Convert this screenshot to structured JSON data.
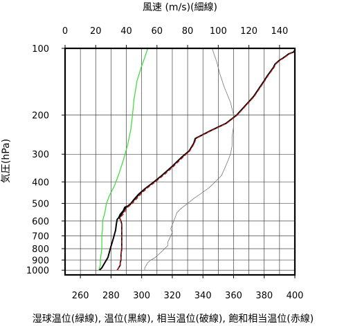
{
  "chart_data": {
    "type": "line",
    "y_scale": "log",
    "y_reversed": true,
    "grid": true,
    "top_axis": {
      "label": "風速 (m/s)(細線)",
      "range": [
        0,
        150
      ],
      "ticks": [
        "0",
        "20",
        "40",
        "60",
        "80",
        "100",
        "120",
        "140"
      ],
      "tick_values": [
        0,
        20,
        40,
        60,
        80,
        100,
        120,
        140
      ]
    },
    "bottom_axis": {
      "label": "湿球温位(緑線), 温位(黒線), 相当温位(破線), 飽和相当温位(赤線)",
      "range": [
        250,
        400
      ],
      "ticks": [
        "260",
        "280",
        "300",
        "320",
        "340",
        "360",
        "380",
        "400"
      ],
      "tick_values": [
        260,
        280,
        300,
        320,
        340,
        360,
        380,
        400
      ]
    },
    "left_axis": {
      "label": "気圧(hPa)",
      "range": [
        100,
        1050
      ],
      "ticks": [
        "100",
        "200",
        "300",
        "400",
        "500",
        "600",
        "700",
        "800",
        "900",
        "1000"
      ],
      "tick_values": [
        100,
        200,
        300,
        400,
        500,
        600,
        700,
        800,
        900,
        1000
      ]
    },
    "colors": {
      "wet_bulb": "#33dd33",
      "theta": "#000000",
      "theta_e": "#111111",
      "theta_es": "#dd1111",
      "wind": "#777777",
      "grid": "#222222"
    },
    "series": [
      {
        "key": "wind",
        "axis": "top",
        "points": [
          [
            52,
            1000
          ],
          [
            52,
            975
          ],
          [
            53,
            950
          ],
          [
            54,
            925
          ],
          [
            56,
            900
          ],
          [
            59,
            875
          ],
          [
            61,
            850
          ],
          [
            63,
            825
          ],
          [
            65,
            800
          ],
          [
            67,
            775
          ],
          [
            67,
            750
          ],
          [
            68,
            725
          ],
          [
            69,
            700
          ],
          [
            70,
            675
          ],
          [
            69,
            650
          ],
          [
            70,
            625
          ],
          [
            71,
            600
          ],
          [
            72,
            575
          ],
          [
            73,
            550
          ],
          [
            76,
            525
          ],
          [
            80,
            500
          ],
          [
            84,
            475
          ],
          [
            89,
            450
          ],
          [
            94,
            425
          ],
          [
            98,
            400
          ],
          [
            102,
            375
          ],
          [
            104,
            350
          ],
          [
            106,
            325
          ],
          [
            108,
            300
          ],
          [
            109,
            275
          ],
          [
            109,
            250
          ],
          [
            110,
            225
          ],
          [
            110,
            200
          ],
          [
            108,
            175
          ],
          [
            104,
            150
          ],
          [
            101,
            130
          ],
          [
            99,
            115
          ],
          [
            97,
            105
          ],
          [
            96,
            100
          ]
        ]
      },
      {
        "key": "wet_bulb",
        "axis": "bottom",
        "points": [
          [
            272,
            1000
          ],
          [
            273,
            950
          ],
          [
            273,
            900
          ],
          [
            273.5,
            850
          ],
          [
            274,
            800
          ],
          [
            274,
            750
          ],
          [
            274,
            700
          ],
          [
            274.5,
            650
          ],
          [
            274.5,
            600
          ],
          [
            276,
            550
          ],
          [
            277,
            500
          ],
          [
            279,
            460
          ],
          [
            282,
            420
          ],
          [
            285,
            370
          ],
          [
            288,
            320
          ],
          [
            291,
            270
          ],
          [
            293,
            230
          ],
          [
            294,
            200
          ],
          [
            295,
            170
          ],
          [
            297,
            140
          ],
          [
            300,
            120
          ],
          [
            302,
            110
          ],
          [
            304,
            100
          ]
        ]
      },
      {
        "key": "theta",
        "axis": "bottom",
        "points": [
          [
            272.5,
            1000
          ],
          [
            274,
            975
          ],
          [
            276,
            925
          ],
          [
            278,
            875
          ],
          [
            279,
            825
          ],
          [
            280,
            780
          ],
          [
            281,
            740
          ],
          [
            282,
            700
          ],
          [
            283,
            660
          ],
          [
            283.5,
            620
          ],
          [
            284,
            590
          ],
          [
            285,
            580
          ],
          [
            286,
            560
          ],
          [
            288,
            540
          ],
          [
            289,
            520
          ],
          [
            292,
            510
          ],
          [
            295,
            480
          ],
          [
            298,
            455
          ],
          [
            302,
            430
          ],
          [
            307,
            405
          ],
          [
            313,
            375
          ],
          [
            320,
            340
          ],
          [
            326,
            310
          ],
          [
            331,
            290
          ],
          [
            334,
            268
          ],
          [
            335,
            255
          ],
          [
            345,
            235
          ],
          [
            355,
            218
          ],
          [
            362,
            200
          ],
          [
            368,
            180
          ],
          [
            373,
            165
          ],
          [
            380,
            140
          ],
          [
            382,
            133
          ],
          [
            386,
            122
          ],
          [
            387,
            118
          ],
          [
            390,
            113
          ],
          [
            392,
            111
          ],
          [
            396,
            106
          ],
          [
            399,
            104
          ],
          [
            400,
            102
          ]
        ]
      },
      {
        "key": "theta_e",
        "axis": "bottom",
        "points": [
          [
            284,
            1000
          ],
          [
            285,
            975
          ],
          [
            286,
            950
          ],
          [
            286,
            925
          ],
          [
            286.5,
            900
          ],
          [
            286.5,
            850
          ],
          [
            287,
            800
          ],
          [
            287,
            750
          ],
          [
            287,
            700
          ],
          [
            287,
            650
          ],
          [
            287,
            620
          ],
          [
            286.5,
            600
          ],
          [
            286,
            590
          ],
          [
            285.5,
            580
          ],
          [
            287,
            560
          ],
          [
            288.5,
            540
          ],
          [
            290,
            520
          ],
          [
            293,
            500
          ],
          [
            296,
            475
          ],
          [
            299,
            450
          ],
          [
            303,
            425
          ],
          [
            308,
            400
          ],
          [
            314,
            370
          ],
          [
            320,
            340
          ],
          [
            326,
            310
          ],
          [
            331,
            290
          ],
          [
            334,
            268
          ],
          [
            335,
            255
          ],
          [
            345,
            235
          ],
          [
            355,
            218
          ],
          [
            362,
            200
          ],
          [
            368,
            180
          ],
          [
            373,
            165
          ],
          [
            380,
            140
          ],
          [
            382,
            133
          ],
          [
            386,
            122
          ],
          [
            387,
            118
          ],
          [
            390,
            113
          ],
          [
            392,
            111
          ],
          [
            396,
            106
          ],
          [
            399,
            104
          ],
          [
            400,
            102
          ]
        ]
      },
      {
        "key": "theta_es",
        "axis": "bottom",
        "points": [
          [
            284,
            1000
          ],
          [
            285,
            975
          ],
          [
            286,
            950
          ],
          [
            286,
            925
          ],
          [
            286.5,
            900
          ],
          [
            286.5,
            850
          ],
          [
            287,
            800
          ],
          [
            287,
            750
          ],
          [
            287,
            700
          ],
          [
            287,
            650
          ],
          [
            287,
            620
          ],
          [
            286.5,
            600
          ],
          [
            286,
            590
          ],
          [
            286,
            580
          ],
          [
            288,
            560
          ],
          [
            289.5,
            540
          ],
          [
            291,
            520
          ],
          [
            294,
            500
          ],
          [
            297,
            475
          ],
          [
            300,
            450
          ],
          [
            304,
            425
          ],
          [
            309,
            400
          ],
          [
            315,
            370
          ],
          [
            321,
            340
          ],
          [
            327,
            310
          ],
          [
            331.5,
            290
          ],
          [
            334.5,
            268
          ],
          [
            335.5,
            255
          ],
          [
            345.5,
            235
          ],
          [
            355.5,
            218
          ],
          [
            362.5,
            200
          ],
          [
            368.5,
            180
          ],
          [
            373.5,
            165
          ],
          [
            380.5,
            140
          ],
          [
            382.5,
            133
          ],
          [
            386.5,
            122
          ],
          [
            387.5,
            118
          ],
          [
            390.5,
            113
          ],
          [
            392.5,
            111
          ],
          [
            396.5,
            106
          ],
          [
            399.5,
            104
          ],
          [
            400,
            102
          ]
        ]
      }
    ]
  }
}
